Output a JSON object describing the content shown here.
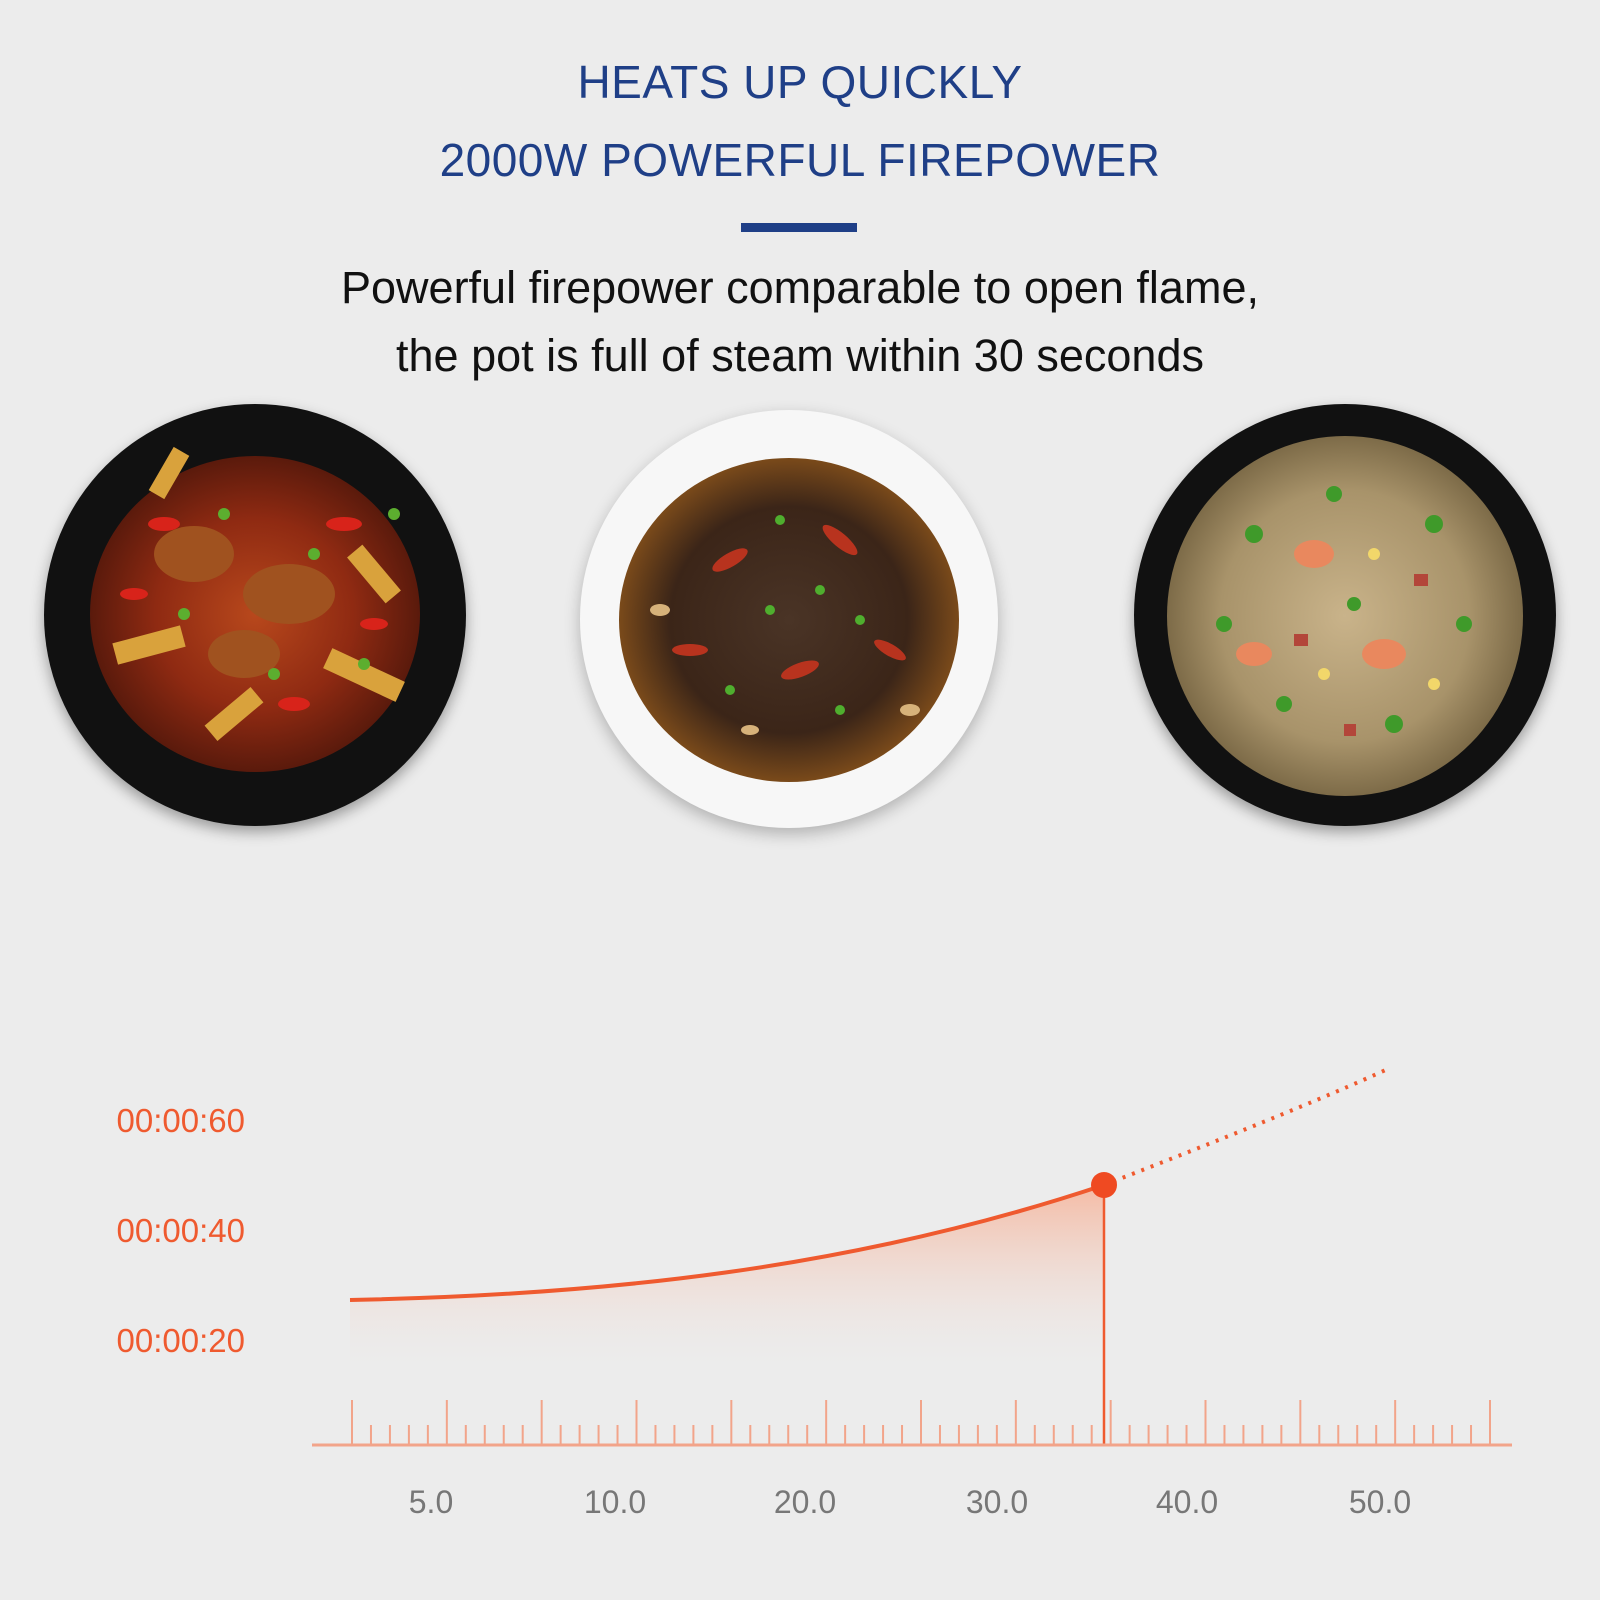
{
  "header": {
    "line1": "HEATS UP QUICKLY",
    "line2": "2000W POWERFUL FIREPOWER"
  },
  "description": {
    "line1": "Powerful firepower comparable to open flame,",
    "line2": "the pot is full of steam within 30 seconds"
  },
  "colors": {
    "headline": "#1f3f87",
    "chart_line": "#ef5a2f",
    "axis_label": "#777777"
  },
  "dishes": [
    {
      "icon": "spicy-chicken-dish-black-plate"
    },
    {
      "icon": "stir-fried-beef-dish-white-plate"
    },
    {
      "icon": "fried-rice-dish-black-plate"
    }
  ],
  "chart_data": {
    "type": "area",
    "title": "",
    "xlabel": "",
    "ylabel": "",
    "y_tick_labels": [
      "00:00:60",
      "00:00:40",
      "00:00:20"
    ],
    "x_tick_labels": [
      "5.0",
      "10.0",
      "20.0",
      "30.0",
      "40.0",
      "50.0"
    ],
    "curve_points": [
      [
        0,
        0.25
      ],
      [
        0.2,
        0.28
      ],
      [
        0.4,
        0.34
      ],
      [
        0.6,
        0.43
      ],
      [
        0.8,
        0.56
      ],
      [
        1.0,
        0.7
      ]
    ],
    "highlight_marker": true,
    "dotted_extension": true,
    "grid": false
  }
}
